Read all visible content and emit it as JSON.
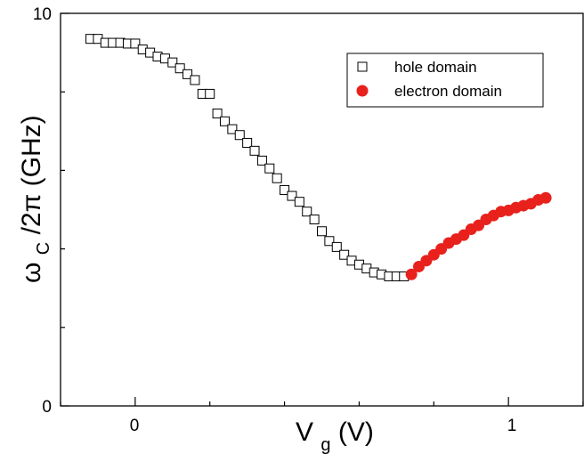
{
  "chart_data": {
    "type": "scatter",
    "xlabel": {
      "main": "V",
      "sub": "g",
      "unit": " (V)"
    },
    "ylabel": {
      "main": "ω",
      "sub": "C",
      "rest": "/2π  (GHz)"
    },
    "xlim": [
      -0.2,
      1.2
    ],
    "ylim": [
      0,
      10
    ],
    "x_ticks": [
      0,
      1
    ],
    "x_minor_ticks": [
      -0.2,
      0.2,
      0.4,
      0.6,
      0.8,
      1.2
    ],
    "y_ticks": [
      0,
      10
    ],
    "y_minor_ticks": [
      2,
      4,
      6,
      8
    ],
    "grid": false,
    "legend_position": "top-right",
    "series": [
      {
        "name": "hole domain",
        "marker": "open-square",
        "color": "#000000",
        "points": [
          [
            -0.12,
            9.35
          ],
          [
            -0.1,
            9.35
          ],
          [
            -0.08,
            9.25
          ],
          [
            -0.06,
            9.25
          ],
          [
            -0.04,
            9.25
          ],
          [
            -0.02,
            9.23
          ],
          [
            0.0,
            9.23
          ],
          [
            0.02,
            9.08
          ],
          [
            0.04,
            9.0
          ],
          [
            0.06,
            8.9
          ],
          [
            0.08,
            8.85
          ],
          [
            0.1,
            8.75
          ],
          [
            0.12,
            8.6
          ],
          [
            0.14,
            8.45
          ],
          [
            0.16,
            8.3
          ],
          [
            0.18,
            7.95
          ],
          [
            0.2,
            7.95
          ],
          [
            0.22,
            7.45
          ],
          [
            0.24,
            7.25
          ],
          [
            0.26,
            7.05
          ],
          [
            0.28,
            6.9
          ],
          [
            0.3,
            6.7
          ],
          [
            0.32,
            6.5
          ],
          [
            0.34,
            6.25
          ],
          [
            0.36,
            6.05
          ],
          [
            0.38,
            5.8
          ],
          [
            0.4,
            5.5
          ],
          [
            0.42,
            5.35
          ],
          [
            0.44,
            5.2
          ],
          [
            0.46,
            4.95
          ],
          [
            0.48,
            4.75
          ],
          [
            0.5,
            4.45
          ],
          [
            0.52,
            4.2
          ],
          [
            0.54,
            4.05
          ],
          [
            0.56,
            3.85
          ],
          [
            0.58,
            3.7
          ],
          [
            0.6,
            3.6
          ],
          [
            0.62,
            3.5
          ],
          [
            0.64,
            3.4
          ],
          [
            0.66,
            3.35
          ],
          [
            0.68,
            3.3
          ],
          [
            0.7,
            3.3
          ],
          [
            0.72,
            3.3
          ]
        ]
      },
      {
        "name": "electron domain",
        "marker": "filled-circle",
        "color": "#e8211c",
        "points": [
          [
            0.74,
            3.35
          ],
          [
            0.76,
            3.55
          ],
          [
            0.78,
            3.7
          ],
          [
            0.8,
            3.85
          ],
          [
            0.82,
            4.0
          ],
          [
            0.84,
            4.15
          ],
          [
            0.86,
            4.25
          ],
          [
            0.88,
            4.35
          ],
          [
            0.9,
            4.5
          ],
          [
            0.92,
            4.6
          ],
          [
            0.94,
            4.75
          ],
          [
            0.96,
            4.85
          ],
          [
            0.98,
            4.95
          ],
          [
            1.0,
            4.98
          ],
          [
            1.02,
            5.05
          ],
          [
            1.04,
            5.1
          ],
          [
            1.06,
            5.15
          ],
          [
            1.08,
            5.25
          ],
          [
            1.1,
            5.3
          ]
        ]
      }
    ]
  }
}
